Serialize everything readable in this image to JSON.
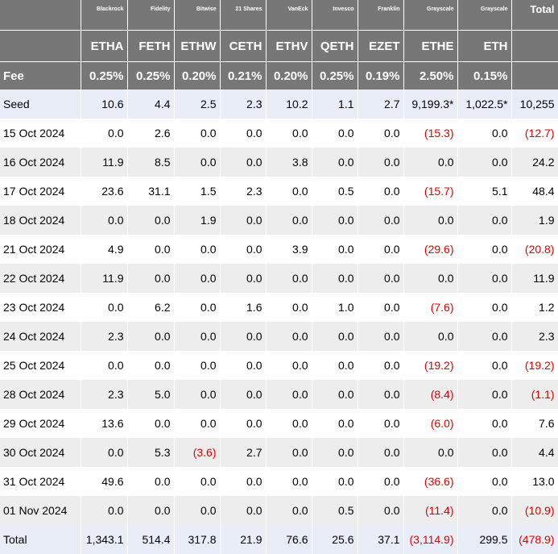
{
  "chart_data": {
    "type": "table",
    "header": {
      "issuers": [
        "",
        "Blackrock",
        "Fidelity",
        "Bitwise",
        "21 Shares",
        "VanEck",
        "Invesco",
        "Franklin",
        "Grayscale",
        "Grayscale",
        ""
      ],
      "total_label": "Total",
      "tickers": [
        "",
        "ETHA",
        "FETH",
        "ETHW",
        "CETH",
        "ETHV",
        "QETH",
        "EZET",
        "ETHE",
        "ETH",
        ""
      ],
      "fee_label": "Fee",
      "fees": [
        "0.25%",
        "0.25%",
        "0.20%",
        "0.21%",
        "0.20%",
        "0.25%",
        "0.19%",
        "2.50%",
        "0.15%",
        ""
      ]
    },
    "rows": [
      {
        "label": "Seed",
        "values": [
          "10.6",
          "4.4",
          "2.5",
          "2.3",
          "10.2",
          "1.1",
          "2.7",
          "9,199.3*",
          "1,022.5*",
          "10,255"
        ]
      },
      {
        "label": "15 Oct 2024",
        "values": [
          "0.0",
          "2.6",
          "0.0",
          "0.0",
          "0.0",
          "0.0",
          "0.0",
          "(15.3)",
          "0.0",
          "(12.7)"
        ]
      },
      {
        "label": "16 Oct 2024",
        "values": [
          "11.9",
          "8.5",
          "0.0",
          "0.0",
          "3.8",
          "0.0",
          "0.0",
          "0.0",
          "0.0",
          "24.2"
        ]
      },
      {
        "label": "17 Oct 2024",
        "values": [
          "23.6",
          "31.1",
          "1.5",
          "2.3",
          "0.0",
          "0.5",
          "0.0",
          "(15.7)",
          "5.1",
          "48.4"
        ]
      },
      {
        "label": "18 Oct 2024",
        "values": [
          "0.0",
          "0.0",
          "1.9",
          "0.0",
          "0.0",
          "0.0",
          "0.0",
          "0.0",
          "0.0",
          "1.9"
        ]
      },
      {
        "label": "21 Oct 2024",
        "values": [
          "4.9",
          "0.0",
          "0.0",
          "0.0",
          "3.9",
          "0.0",
          "0.0",
          "(29.6)",
          "0.0",
          "(20.8)"
        ]
      },
      {
        "label": "22 Oct 2024",
        "values": [
          "11.9",
          "0.0",
          "0.0",
          "0.0",
          "0.0",
          "0.0",
          "0.0",
          "0.0",
          "0.0",
          "11.9"
        ]
      },
      {
        "label": "23 Oct 2024",
        "values": [
          "0.0",
          "6.2",
          "0.0",
          "1.6",
          "0.0",
          "1.0",
          "0.0",
          "(7.6)",
          "0.0",
          "1.2"
        ]
      },
      {
        "label": "24 Oct 2024",
        "values": [
          "2.3",
          "0.0",
          "0.0",
          "0.0",
          "0.0",
          "0.0",
          "0.0",
          "0.0",
          "0.0",
          "2.3"
        ]
      },
      {
        "label": "25 Oct 2024",
        "values": [
          "0.0",
          "0.0",
          "0.0",
          "0.0",
          "0.0",
          "0.0",
          "0.0",
          "(19.2)",
          "0.0",
          "(19.2)"
        ]
      },
      {
        "label": "28 Oct 2024",
        "values": [
          "2.3",
          "5.0",
          "0.0",
          "0.0",
          "0.0",
          "0.0",
          "0.0",
          "(8.4)",
          "0.0",
          "(1.1)"
        ]
      },
      {
        "label": "29 Oct 2024",
        "values": [
          "13.6",
          "0.0",
          "0.0",
          "0.0",
          "0.0",
          "0.0",
          "0.0",
          "(6.0)",
          "0.0",
          "7.6"
        ]
      },
      {
        "label": "30 Oct 2024",
        "values": [
          "0.0",
          "5.3",
          "(3.6)",
          "2.7",
          "0.0",
          "0.0",
          "0.0",
          "0.0",
          "0.0",
          "4.4"
        ]
      },
      {
        "label": "31 Oct 2024",
        "values": [
          "49.6",
          "0.0",
          "0.0",
          "0.0",
          "0.0",
          "0.0",
          "0.0",
          "(36.6)",
          "0.0",
          "13.0"
        ]
      },
      {
        "label": "01 Nov 2024",
        "values": [
          "0.0",
          "0.0",
          "0.0",
          "0.0",
          "0.0",
          "0.5",
          "0.0",
          "(11.4)",
          "0.0",
          "(10.9)"
        ]
      }
    ],
    "total_row": {
      "label": "Total",
      "values": [
        "1,343.1",
        "514.4",
        "317.8",
        "21.9",
        "76.6",
        "25.6",
        "37.1",
        "(3,114.9)",
        "299.5",
        "(478.9)"
      ]
    }
  },
  "colors": {
    "header_bg": "#777777",
    "negative": "#e00000",
    "seed_total_bg": "#e8edf8",
    "stripe_bg": "#ededed"
  }
}
